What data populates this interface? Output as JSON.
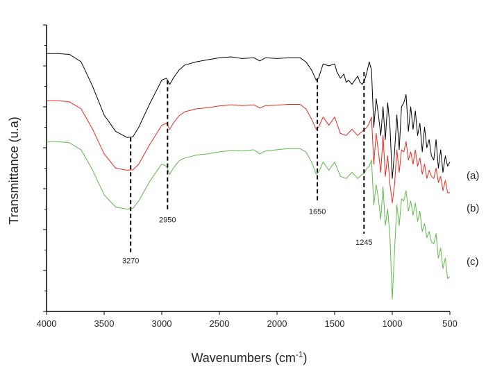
{
  "chart_data": {
    "type": "line",
    "xlabel": "Wavenumbers (cm",
    "xlabel_sup": "-1",
    "xlabel_end": ")",
    "ylabel": "Transmittance (u.a)",
    "xlim": [
      4000,
      500
    ],
    "x_reversed": true,
    "ylim": [
      0,
      7
    ],
    "y_ticks_labeled": false,
    "grid": false,
    "x_ticks": [
      4000,
      3500,
      3000,
      2500,
      2000,
      1500,
      1000,
      500
    ],
    "x_tick_labels": [
      "4000",
      "3500",
      "3000",
      "2500",
      "2000",
      "1500",
      "1000",
      "500"
    ],
    "y_ticks": [
      0,
      1,
      2,
      3,
      4,
      5,
      6,
      7
    ],
    "peak_markers": [
      {
        "x": 3270,
        "label": "3270",
        "y_top": 4.25,
        "y_bottom": 1.45
      },
      {
        "x": 2950,
        "label": "2950",
        "y_top": 5.65,
        "y_bottom": 2.45
      },
      {
        "x": 1650,
        "label": "1650",
        "y_top": 5.7,
        "y_bottom": 2.65
      },
      {
        "x": 1245,
        "label": "1245",
        "y_top": 5.85,
        "y_bottom": 1.9
      }
    ],
    "series": [
      {
        "name": "(a)",
        "color": "#000000",
        "x": [
          4000,
          3900,
          3800,
          3700,
          3600,
          3500,
          3400,
          3300,
          3250,
          3200,
          3100,
          3000,
          2960,
          2930,
          2900,
          2850,
          2800,
          2700,
          2600,
          2500,
          2400,
          2300,
          2200,
          2150,
          2100,
          2000,
          1900,
          1800,
          1750,
          1700,
          1660,
          1640,
          1600,
          1550,
          1500,
          1480,
          1450,
          1420,
          1400,
          1380,
          1350,
          1300,
          1280,
          1260,
          1240,
          1220,
          1200,
          1180,
          1160,
          1140,
          1120,
          1100,
          1080,
          1060,
          1040,
          1020,
          1000,
          980,
          960,
          940,
          920,
          900,
          880,
          860,
          840,
          820,
          800,
          780,
          760,
          740,
          720,
          700,
          680,
          660,
          640,
          620,
          600,
          580,
          560,
          540,
          520,
          500
        ],
        "y": [
          6.3,
          6.3,
          6.28,
          6.1,
          5.5,
          4.8,
          4.4,
          4.25,
          4.27,
          4.5,
          5.1,
          5.65,
          5.7,
          5.55,
          5.7,
          5.9,
          6.02,
          6.1,
          6.15,
          6.2,
          6.22,
          6.18,
          6.2,
          6.12,
          6.2,
          6.18,
          6.2,
          6.2,
          6.1,
          5.9,
          5.65,
          5.7,
          6.05,
          6.0,
          6.05,
          5.85,
          5.7,
          5.8,
          5.6,
          5.65,
          5.55,
          5.75,
          5.6,
          5.55,
          5.65,
          5.85,
          6.1,
          5.9,
          4.5,
          5.2,
          4.8,
          4.3,
          5.0,
          4.2,
          5.1,
          4.5,
          3.25,
          3.9,
          4.8,
          3.95,
          5.0,
          5.1,
          5.3,
          4.4,
          5.0,
          4.45,
          4.9,
          4.3,
          4.6,
          3.9,
          4.5,
          4.0,
          4.2,
          3.8,
          3.7,
          4.2,
          3.5,
          3.95,
          3.4,
          3.8,
          3.55,
          3.65
        ]
      },
      {
        "name": "(b)",
        "color": "#e8281e",
        "x": [
          4000,
          3900,
          3800,
          3700,
          3600,
          3500,
          3400,
          3300,
          3250,
          3200,
          3100,
          3000,
          2960,
          2930,
          2900,
          2850,
          2800,
          2700,
          2600,
          2500,
          2400,
          2300,
          2200,
          2150,
          2100,
          2000,
          1900,
          1800,
          1750,
          1700,
          1660,
          1640,
          1600,
          1550,
          1500,
          1450,
          1400,
          1350,
          1300,
          1260,
          1240,
          1220,
          1200,
          1180,
          1160,
          1140,
          1120,
          1100,
          1080,
          1060,
          1040,
          1020,
          1000,
          980,
          960,
          940,
          920,
          900,
          880,
          860,
          840,
          820,
          800,
          780,
          760,
          740,
          720,
          700,
          680,
          660,
          640,
          620,
          600,
          580,
          560,
          540,
          520,
          500
        ],
        "y": [
          5.15,
          5.15,
          5.12,
          4.95,
          4.45,
          3.85,
          3.5,
          3.45,
          3.46,
          3.6,
          4.1,
          4.55,
          4.6,
          4.45,
          4.6,
          4.78,
          4.88,
          4.95,
          4.98,
          5.02,
          5.05,
          5.03,
          5.05,
          4.97,
          5.03,
          5.04,
          5.06,
          5.06,
          4.95,
          4.7,
          4.45,
          4.5,
          4.75,
          4.55,
          4.75,
          4.35,
          4.3,
          4.45,
          4.3,
          4.4,
          4.45,
          4.5,
          4.6,
          4.75,
          3.6,
          4.35,
          3.9,
          3.4,
          4.3,
          3.3,
          3.8,
          3.1,
          2.65,
          3.1,
          3.95,
          3.4,
          3.95,
          3.9,
          4.15,
          3.7,
          3.9,
          3.6,
          3.95,
          3.55,
          3.75,
          3.35,
          3.6,
          3.25,
          3.45,
          3.3,
          3.25,
          3.5,
          3.15,
          3.3,
          2.95,
          3.2,
          2.9,
          2.9
        ]
      },
      {
        "name": "(c)",
        "color": "#5fb84a",
        "x": [
          4000,
          3900,
          3800,
          3700,
          3600,
          3500,
          3400,
          3300,
          3250,
          3200,
          3100,
          3000,
          2960,
          2930,
          2900,
          2850,
          2800,
          2700,
          2600,
          2500,
          2400,
          2300,
          2200,
          2150,
          2100,
          2000,
          1900,
          1800,
          1750,
          1700,
          1660,
          1640,
          1600,
          1550,
          1500,
          1450,
          1400,
          1350,
          1300,
          1260,
          1240,
          1220,
          1200,
          1180,
          1160,
          1140,
          1120,
          1100,
          1080,
          1060,
          1040,
          1020,
          1000,
          980,
          960,
          940,
          920,
          900,
          880,
          860,
          840,
          820,
          800,
          780,
          760,
          740,
          720,
          700,
          680,
          660,
          640,
          620,
          600,
          580,
          560,
          540,
          520,
          500
        ],
        "y": [
          4.15,
          4.15,
          4.12,
          3.95,
          3.45,
          2.85,
          2.55,
          2.5,
          2.52,
          2.7,
          3.2,
          3.6,
          3.55,
          3.35,
          3.5,
          3.68,
          3.75,
          3.82,
          3.85,
          3.9,
          3.93,
          3.92,
          3.95,
          3.85,
          3.92,
          3.95,
          3.98,
          3.98,
          3.9,
          3.65,
          3.35,
          3.4,
          3.65,
          3.45,
          3.65,
          3.3,
          3.25,
          3.4,
          3.25,
          3.35,
          3.4,
          3.5,
          3.55,
          3.7,
          2.6,
          3.1,
          2.75,
          2.25,
          3.05,
          2.1,
          2.5,
          1.8,
          0.3,
          1.5,
          2.6,
          2.1,
          2.75,
          2.7,
          2.95,
          2.45,
          2.7,
          2.35,
          2.65,
          2.2,
          2.45,
          1.95,
          2.15,
          1.8,
          1.95,
          1.7,
          1.65,
          1.9,
          1.3,
          1.55,
          1.05,
          1.3,
          0.8,
          0.85
        ]
      }
    ]
  }
}
